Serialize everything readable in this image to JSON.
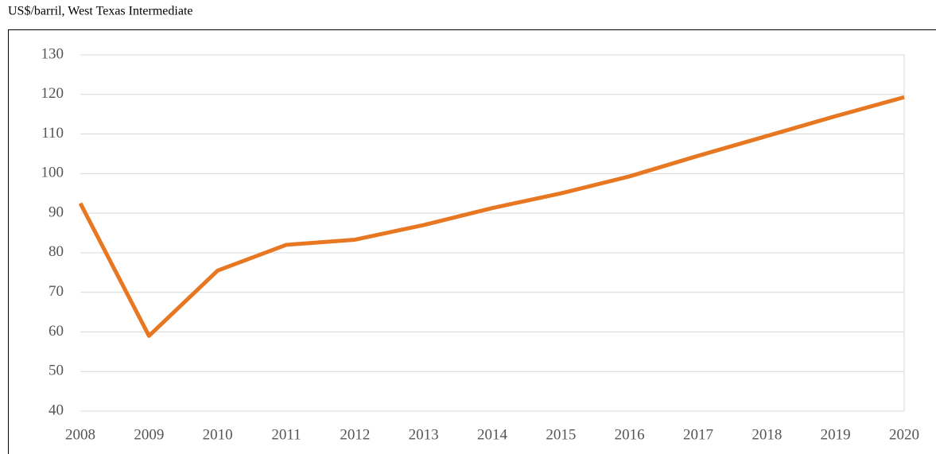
{
  "chart_data": {
    "type": "line",
    "title": "US$/barril, West Texas Intermediate",
    "categories": [
      "2008",
      "2009",
      "2010",
      "2011",
      "2012",
      "2013",
      "2014",
      "2015",
      "2016",
      "2017",
      "2018",
      "2019",
      "2020"
    ],
    "values": [
      92.5,
      59,
      75.5,
      82,
      83.3,
      87,
      91.3,
      95,
      99.3,
      104.5,
      109.5,
      114.5,
      119.3
    ],
    "color": "#e87722",
    "ylim": [
      40,
      130
    ],
    "yticks": [
      40,
      50,
      60,
      70,
      80,
      90,
      100,
      110,
      120,
      130
    ],
    "grid": true
  }
}
